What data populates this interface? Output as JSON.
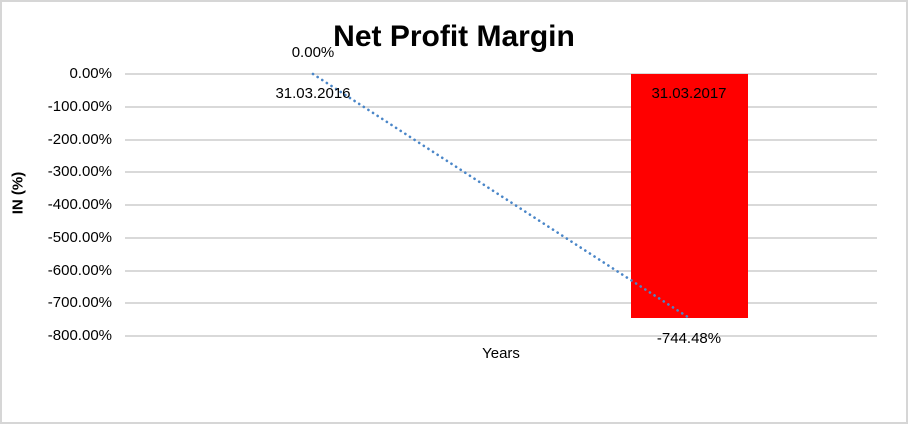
{
  "chart_data": {
    "type": "bar",
    "title": "Net Profit Margin",
    "categories": [
      "31.03.2016",
      "31.03.2017"
    ],
    "values": [
      0,
      -744.48
    ],
    "data_labels": [
      "0.00%",
      "-744.48%"
    ],
    "xlabel": "Years",
    "ylabel": "IN (%)",
    "ylim": [
      0,
      -800
    ],
    "y_ticks": [
      "0.00%",
      "-100.00%",
      "-200.00%",
      "-300.00%",
      "-400.00%",
      "-500.00%",
      "-600.00%",
      "-700.00%",
      "-800.00%"
    ],
    "grid": true,
    "legend": "none",
    "colors": {
      "bar": "#FF0000",
      "trendline": "#4A86C8",
      "gridline": "#D9D9D9",
      "text": "#000000"
    },
    "trendline": {
      "type": "linear",
      "style": "dotted",
      "from": 0,
      "to": -744.48
    }
  }
}
